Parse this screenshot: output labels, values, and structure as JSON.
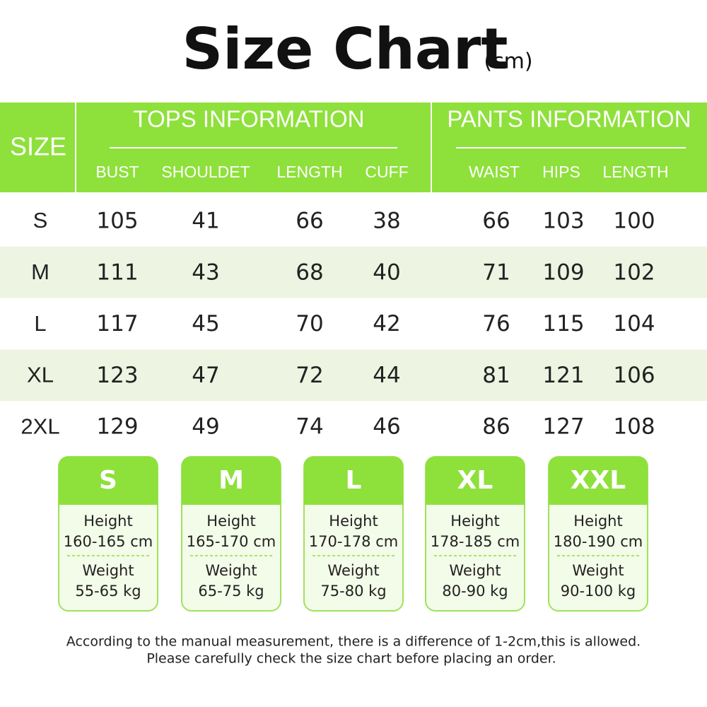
{
  "title": "Size Chart",
  "unit": "(cm)",
  "table": {
    "size_header": "SIZE",
    "tops_header": "TOPS INFORMATION",
    "pants_header": "PANTS INFORMATION",
    "tops_columns": [
      "BUST",
      "SHOULDET",
      "LENGTH",
      "CUFF"
    ],
    "pants_columns": [
      "WAIST",
      "HIPS",
      "LENGTH"
    ],
    "rows": [
      [
        "S",
        105,
        41,
        66,
        38,
        66,
        103,
        100
      ],
      [
        "M",
        111,
        43,
        68,
        40,
        71,
        109,
        102
      ],
      [
        "L",
        117,
        45,
        70,
        42,
        76,
        115,
        104
      ],
      [
        "XL",
        123,
        47,
        72,
        44,
        81,
        121,
        106
      ],
      [
        "2XL",
        129,
        49,
        74,
        46,
        86,
        127,
        108
      ]
    ]
  },
  "cards": [
    {
      "size": "S",
      "height_label": "Height",
      "height": "160-165 cm",
      "weight_label": "Weight",
      "weight": "55-65 kg"
    },
    {
      "size": "M",
      "height_label": "Height",
      "height": "165-170 cm",
      "weight_label": "Weight",
      "weight": "65-75 kg"
    },
    {
      "size": "L",
      "height_label": "Height",
      "height": "170-178 cm",
      "weight_label": "Weight",
      "weight": "75-80 kg"
    },
    {
      "size": "XL",
      "height_label": "Height",
      "height": "178-185 cm",
      "weight_label": "Weight",
      "weight": "80-90 kg"
    },
    {
      "size": "XXL",
      "height_label": "Height",
      "height": "180-190 cm",
      "weight_label": "Weight",
      "weight": "90-100 kg"
    }
  ],
  "notes": [
    "According to the manual measurement, there is a difference of 1-2cm,this is allowed.",
    "Please carefully check the size chart before placing an order."
  ]
}
